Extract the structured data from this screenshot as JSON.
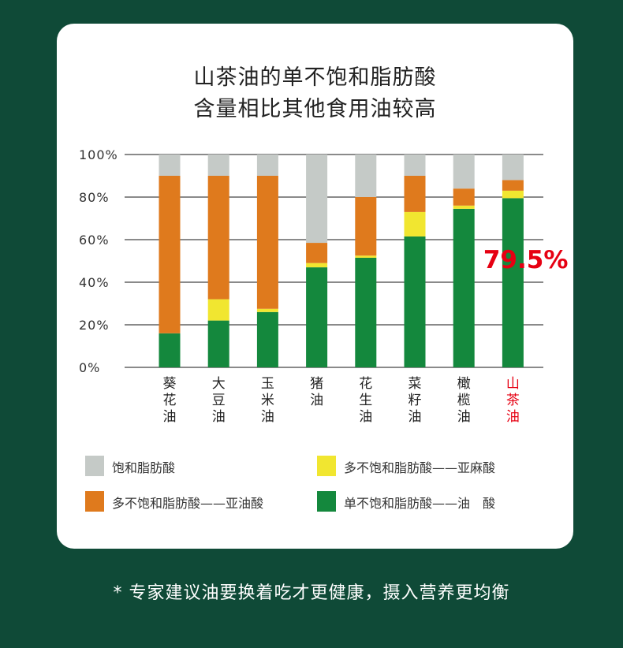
{
  "title_line1": "山茶油的单不饱和脂肪酸",
  "title_line2": "含量相比其他食用油较高",
  "footer_note": "* 专家建议油要换着吃才更健康，摄入营养更均衡",
  "chart_data": {
    "type": "bar",
    "stacked": true,
    "categories": [
      "葵花油",
      "大豆油",
      "玉米油",
      "猪油",
      "花生油",
      "菜籽油",
      "橄榄油",
      "山茶油"
    ],
    "category_label_lines": [
      [
        "葵",
        "花",
        "油"
      ],
      [
        "大",
        "豆",
        "油"
      ],
      [
        "玉",
        "米",
        "油"
      ],
      [
        "猪",
        "油"
      ],
      [
        "花",
        "生",
        "油"
      ],
      [
        "菜",
        "籽",
        "油"
      ],
      [
        "橄",
        "榄",
        "油"
      ],
      [
        "山",
        "茶",
        "油"
      ]
    ],
    "highlight_category_index": 7,
    "highlight_color": "#e60012",
    "ylim": [
      0,
      100
    ],
    "yticks": [
      0,
      20,
      40,
      60,
      80,
      100
    ],
    "ytick_labels": [
      "0%",
      "20%",
      "40%",
      "60%",
      "80%",
      "100%"
    ],
    "grid": true,
    "annotation": {
      "text": "79.5%",
      "category_index": 7,
      "value": 79.5,
      "color": "#e60012"
    },
    "series": [
      {
        "name": "单不饱和脂肪酸——油　酸",
        "color": "#14883d",
        "values": [
          16,
          22,
          26,
          47,
          51.5,
          61.5,
          74.5,
          79.5
        ]
      },
      {
        "name": "多不饱和脂肪酸——亚麻酸",
        "color": "#f1e630",
        "values": [
          0,
          10,
          1.5,
          2,
          1,
          11.5,
          1.5,
          3.5
        ]
      },
      {
        "name": "多不饱和脂肪酸——亚油酸",
        "color": "#df7a1d",
        "values": [
          74,
          58,
          62.5,
          9.5,
          27.5,
          17,
          8,
          5
        ]
      },
      {
        "name": "饱和脂肪酸",
        "color": "#c5cac7",
        "values": [
          10,
          10,
          10,
          41.5,
          20,
          10,
          16,
          12
        ]
      }
    ],
    "legend": [
      {
        "label": "饱和脂肪酸",
        "color": "#c5cac7"
      },
      {
        "label": "多不饱和脂肪酸——亚麻酸",
        "color": "#f1e630"
      },
      {
        "label": "多不饱和脂肪酸——亚油酸",
        "color": "#df7a1d"
      },
      {
        "label": "单不饱和脂肪酸——油　酸",
        "color": "#14883d"
      }
    ]
  }
}
